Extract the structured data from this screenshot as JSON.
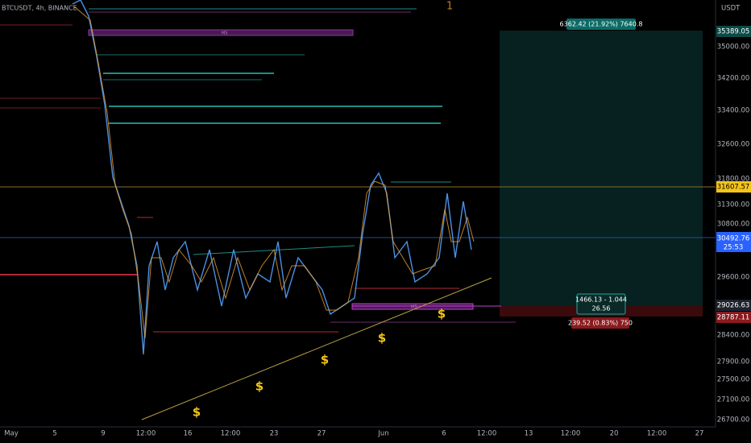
{
  "header": {
    "symbol": "BTCUSDT, 4h, BINANCE",
    "currency": "USDT",
    "marker": "1"
  },
  "price_axis": [
    "35000.00",
    "34200.00",
    "33400.00",
    "32600.00",
    "31800.00",
    "31300.00",
    "30800.00",
    "29600.00",
    "28400.00",
    "27900.00",
    "27500.00",
    "27100.00",
    "26700.00"
  ],
  "time_axis": [
    "May",
    "5",
    "9",
    "12:00",
    "16",
    "12:00",
    "23",
    "27",
    "Jun",
    "6",
    "12:00",
    "13",
    "12:00",
    "20",
    "12:00",
    "27"
  ],
  "badges": {
    "target": "35389.05",
    "yellow_line": "31607.57",
    "last_price": "30492.76",
    "countdown": "25:53",
    "entry": "29026.63",
    "stop": "28787.11"
  },
  "position": {
    "profit": "6362.42 (21.92%) 7640.8",
    "info_1": "1466.13 - 1.044",
    "info_2": "26.56",
    "loss": "239.52 (0.83%) 750"
  },
  "annotations": {
    "box_label_1": "M5",
    "box_label_2": "M5",
    "dollar": "$"
  }
}
